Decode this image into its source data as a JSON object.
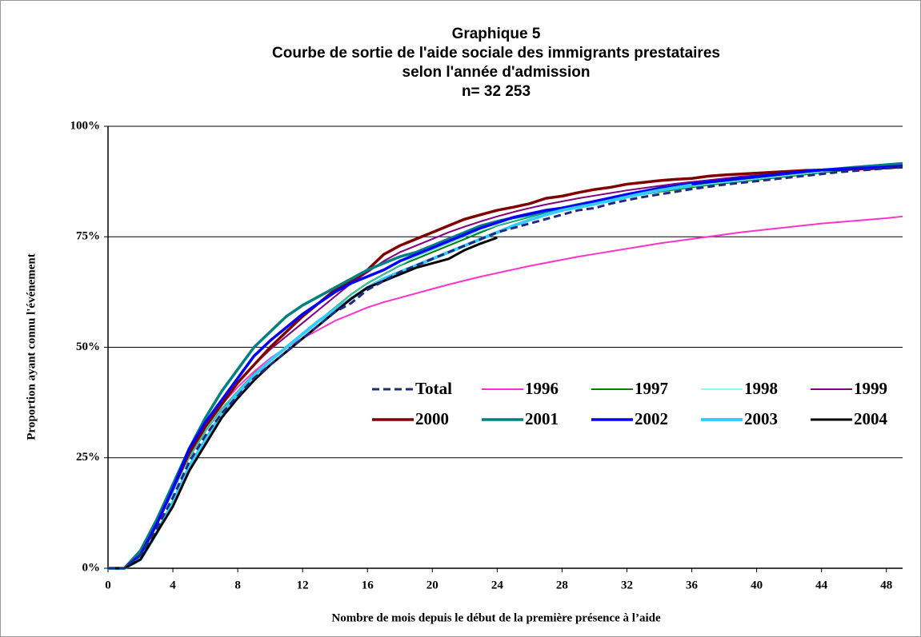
{
  "chart_data": {
    "type": "line",
    "title": [
      "Graphique 5",
      "Courbe de sortie de l'aide sociale des immigrants prestataires",
      "selon l'année d'admission",
      "n= 32 253"
    ],
    "xlabel": "Nombre de mois depuis le début de la première présence à l’aide",
    "ylabel": "Proportion ayant connu l'événement",
    "x": [
      0,
      1,
      2,
      3,
      4,
      5,
      6,
      7,
      8,
      9,
      10,
      11,
      12,
      13,
      14,
      15,
      16,
      17,
      18,
      19,
      20,
      21,
      22,
      23,
      24,
      25,
      26,
      27,
      28,
      29,
      30,
      31,
      32,
      33,
      34,
      35,
      36,
      37,
      38,
      39,
      40,
      41,
      42,
      43,
      44,
      45,
      46,
      47,
      48,
      49
    ],
    "xlim": [
      0,
      49
    ],
    "xticks": [
      0,
      4,
      8,
      12,
      16,
      20,
      24,
      28,
      32,
      36,
      40,
      44,
      48
    ],
    "ylim": [
      0,
      100
    ],
    "yticks": [
      {
        "value": 0,
        "label": "0%"
      },
      {
        "value": 25,
        "label": "25%"
      },
      {
        "value": 50,
        "label": "50%"
      },
      {
        "value": 75,
        "label": "75%"
      },
      {
        "value": 100,
        "label": "100%"
      }
    ],
    "grid": true,
    "series": [
      {
        "name": "Total",
        "color": "#1f2a80",
        "line_width": 3,
        "dashed": true,
        "values": [
          0,
          0,
          3,
          9,
          16,
          24,
          30,
          35,
          39,
          43,
          46,
          49,
          52,
          55,
          58,
          60,
          63,
          65,
          67,
          68.5,
          70,
          71.5,
          73,
          74.5,
          76,
          77,
          78,
          79,
          80,
          81,
          81.5,
          82.5,
          83.3,
          84,
          84.6,
          85.2,
          85.8,
          86.3,
          86.8,
          87.2,
          87.6,
          88,
          88.4,
          88.8,
          89.2,
          89.6,
          89.9,
          90.2,
          90.5,
          90.7
        ]
      },
      {
        "name": "1996",
        "color": "#ff33cc",
        "line_width": 2,
        "dashed": false,
        "values": [
          0,
          0,
          4,
          11,
          19,
          26,
          32,
          37,
          41,
          44.5,
          47.5,
          50,
          52,
          54,
          56,
          57.5,
          59,
          60.2,
          61.2,
          62.2,
          63.2,
          64.2,
          65.1,
          66,
          66.8,
          67.6,
          68.4,
          69.1,
          69.8,
          70.5,
          71.1,
          71.7,
          72.3,
          72.9,
          73.5,
          74,
          74.5,
          75,
          75.5,
          76,
          76.4,
          76.8,
          77.2,
          77.6,
          78,
          78.3,
          78.6,
          78.9,
          79.2,
          79.6
        ]
      },
      {
        "name": "1997",
        "color": "#008000",
        "line_width": 2,
        "dashed": false,
        "values": [
          0,
          0,
          4,
          10,
          18,
          25,
          31,
          36,
          40,
          44,
          47,
          50,
          53,
          56,
          59,
          62,
          64.5,
          66.5,
          68.5,
          70,
          71.5,
          73,
          74.5,
          76,
          77.5,
          78.5,
          79.5,
          80.5,
          81.3,
          82,
          82.7,
          83.4,
          84,
          84.6,
          85.2,
          85.7,
          86.2,
          86.7,
          87.1,
          87.5,
          87.9,
          88.3,
          88.7,
          89.1,
          89.5,
          89.9,
          90.2,
          90.5,
          90.8,
          91.0
        ]
      },
      {
        "name": "1998",
        "color": "#33e0ff",
        "line_width": 1,
        "dashed": false,
        "values": [
          0,
          0,
          3,
          10,
          17,
          25,
          31,
          36,
          40,
          44,
          47,
          50,
          53,
          56,
          59,
          62,
          64.5,
          66.5,
          68.5,
          70.5,
          72,
          73.5,
          75,
          76.3,
          77.5,
          78.6,
          79.6,
          80.5,
          81.3,
          82.1,
          82.8,
          83.5,
          84.1,
          84.7,
          85.3,
          85.8,
          86.3,
          86.8,
          87.2,
          87.6,
          88,
          88.4,
          88.8,
          89.2,
          89.6,
          90,
          90.3,
          90.6,
          90.9,
          91.2
        ]
      },
      {
        "name": "1999",
        "color": "#800080",
        "line_width": 2,
        "dashed": false,
        "values": [
          0,
          0,
          4,
          11,
          19,
          27,
          33,
          38,
          42,
          46,
          49.5,
          52.5,
          55.5,
          58.5,
          61.5,
          64.5,
          67,
          69.5,
          71.5,
          73,
          74.5,
          76,
          77.3,
          78.5,
          79.6,
          80.6,
          81.5,
          82.3,
          83,
          83.7,
          84.3,
          84.9,
          85.5,
          86,
          86.5,
          87,
          87.4,
          87.8,
          88.2,
          88.6,
          88.9,
          89.2,
          89.5,
          89.8,
          90.1,
          90.4,
          90.6,
          90.8,
          91,
          91.1
        ]
      },
      {
        "name": "2000",
        "color": "#800000",
        "line_width": 3.5,
        "dashed": false,
        "values": [
          0,
          0,
          3,
          10,
          18,
          26,
          32,
          37,
          42,
          46,
          50,
          53.5,
          57,
          60,
          63,
          65,
          67.5,
          71,
          73,
          74.5,
          76,
          77.5,
          79,
          80,
          81,
          81.7,
          82.5,
          83.7,
          84.2,
          85,
          85.7,
          86.2,
          86.9,
          87.3,
          87.7,
          88,
          88.2,
          88.7,
          89,
          89.2,
          89.4,
          89.6,
          89.8,
          90,
          90.1,
          90.2,
          90.3,
          90.4,
          90.6,
          90.8
        ]
      },
      {
        "name": "2001",
        "color": "#008080",
        "line_width": 3.5,
        "dashed": false,
        "values": [
          0,
          0,
          4,
          11,
          19,
          27,
          34,
          40,
          45,
          50,
          53.5,
          57,
          59.5,
          61.5,
          63.5,
          65.5,
          67.5,
          69,
          70.5,
          71.5,
          73,
          74.5,
          76,
          77.5,
          78.5,
          79.3,
          80,
          80.7,
          81.5,
          82.3,
          83,
          83.7,
          84.4,
          85.1,
          85.7,
          86.3,
          86.8,
          87.3,
          87.7,
          88.1,
          88.5,
          88.9,
          89.3,
          89.7,
          90.1,
          90.4,
          90.7,
          91,
          91.3,
          91.6
        ]
      },
      {
        "name": "2002",
        "color": "#0000ff",
        "line_width": 3.5,
        "dashed": false,
        "values": [
          0,
          0,
          3,
          10,
          18,
          27,
          33,
          38,
          43,
          48,
          51.5,
          54.5,
          57.5,
          60,
          62.5,
          64.5,
          66,
          67.5,
          69.5,
          71,
          72.5,
          74,
          75.5,
          77,
          78.2,
          79.4,
          80.2,
          81,
          81.5,
          82.2,
          83,
          83.8,
          84.6,
          85.3,
          86,
          86.5,
          87,
          87.4,
          87.8,
          88.2,
          88.6,
          89,
          89.4,
          89.8,
          90.1,
          90.3,
          90.5,
          90.6,
          90.8,
          91
        ]
      },
      {
        "name": "2003",
        "color": "#33ccff",
        "line_width": 4,
        "dashed": false,
        "values": [
          0,
          0,
          2,
          8,
          15,
          23,
          29,
          35,
          39.5,
          43.5,
          47,
          50,
          53,
          56,
          58.5,
          61,
          63.5,
          65.5,
          67,
          68.5,
          70,
          71.5,
          73,
          74.5,
          76,
          77.5,
          78.8,
          80,
          81,
          81.7,
          82.4,
          83.2,
          84,
          84.8,
          85.5,
          86.1,
          86.7,
          null,
          null,
          null,
          null,
          null,
          null,
          null,
          null,
          null,
          null,
          null,
          null,
          null
        ]
      },
      {
        "name": "2004",
        "color": "#000000",
        "line_width": 3,
        "dashed": false,
        "values": [
          0,
          0,
          2,
          8,
          14,
          22,
          28,
          34,
          38.5,
          42.5,
          46,
          49,
          52,
          55,
          58,
          61,
          63.5,
          65,
          66.5,
          68,
          69,
          70,
          72,
          73.5,
          74.8,
          null,
          null,
          null,
          null,
          null,
          null,
          null,
          null,
          null,
          null,
          null,
          null,
          null,
          null,
          null,
          null,
          null,
          null,
          null,
          null,
          null,
          null,
          null,
          null,
          null
        ]
      }
    ]
  }
}
